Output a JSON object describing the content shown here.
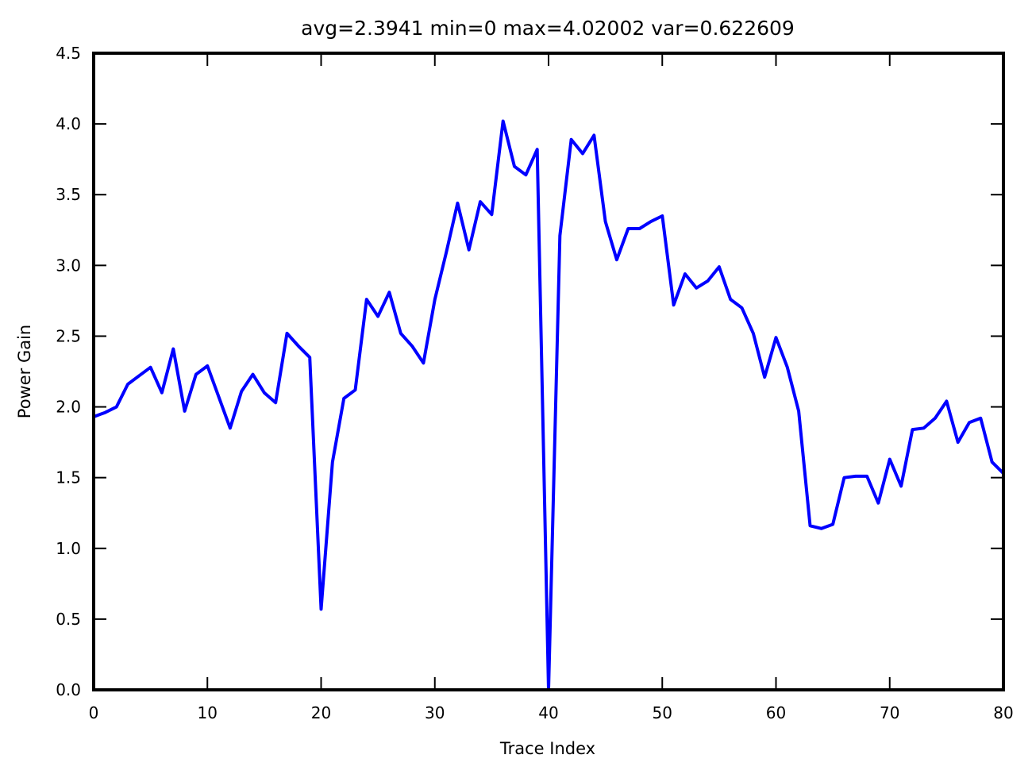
{
  "chart_data": {
    "type": "line",
    "title": "avg=2.3941 min=0 max=4.02002 var=0.622609",
    "xlabel": "Trace Index",
    "ylabel": "Power Gain",
    "xlim": [
      0,
      80
    ],
    "ylim": [
      0,
      4.5
    ],
    "xticks": [
      0,
      10,
      20,
      30,
      40,
      50,
      60,
      70,
      80
    ],
    "yticks": [
      0.0,
      0.5,
      1.0,
      1.5,
      2.0,
      2.5,
      3.0,
      3.5,
      4.0,
      4.5
    ],
    "xtick_labels": [
      "0",
      "10",
      "20",
      "30",
      "40",
      "50",
      "60",
      "70",
      "80"
    ],
    "ytick_labels": [
      "0.0",
      "0.5",
      "1.0",
      "1.5",
      "2.0",
      "2.5",
      "3.0",
      "3.5",
      "4.0",
      "4.5"
    ],
    "grid": false,
    "line_color": "#0000ff",
    "series": [
      {
        "x": [
          0,
          1,
          2,
          3,
          4,
          5,
          6,
          7,
          8,
          9,
          10,
          11,
          12,
          13,
          14,
          15,
          16,
          17,
          18,
          19,
          20,
          21,
          22,
          23,
          24,
          25,
          26,
          27,
          28,
          29,
          30,
          31,
          32,
          33,
          34,
          35,
          36,
          37,
          38,
          39,
          40,
          41,
          42,
          43,
          44,
          45,
          46,
          47,
          48,
          49,
          50,
          51,
          52,
          53,
          54,
          55,
          56,
          57,
          58,
          59,
          60,
          61,
          62,
          63,
          64,
          65,
          66,
          67,
          68,
          69,
          70,
          71,
          72,
          73,
          74,
          75,
          76,
          77,
          78,
          79,
          80
        ],
        "y": [
          1.93,
          1.96,
          2.0,
          2.16,
          2.22,
          2.28,
          2.1,
          2.41,
          1.97,
          2.23,
          2.29,
          2.07,
          1.85,
          2.11,
          2.23,
          2.1,
          2.03,
          2.52,
          2.43,
          2.35,
          0.57,
          1.61,
          2.06,
          2.12,
          2.76,
          2.64,
          2.81,
          2.52,
          2.43,
          2.31,
          2.76,
          3.09,
          3.44,
          3.11,
          3.45,
          3.36,
          4.02,
          3.7,
          3.64,
          3.82,
          0.0,
          3.21,
          3.89,
          3.79,
          3.92,
          3.31,
          3.04,
          3.26,
          3.26,
          3.31,
          3.35,
          2.72,
          2.94,
          2.84,
          2.89,
          2.99,
          2.76,
          2.7,
          2.52,
          2.21,
          2.49,
          2.28,
          1.97,
          1.16,
          1.14,
          1.17,
          1.5,
          1.51,
          1.51,
          1.32,
          1.63,
          1.44,
          1.84,
          1.85,
          1.92,
          2.04,
          1.75,
          1.89,
          1.92,
          1.61,
          1.53
        ]
      }
    ]
  }
}
